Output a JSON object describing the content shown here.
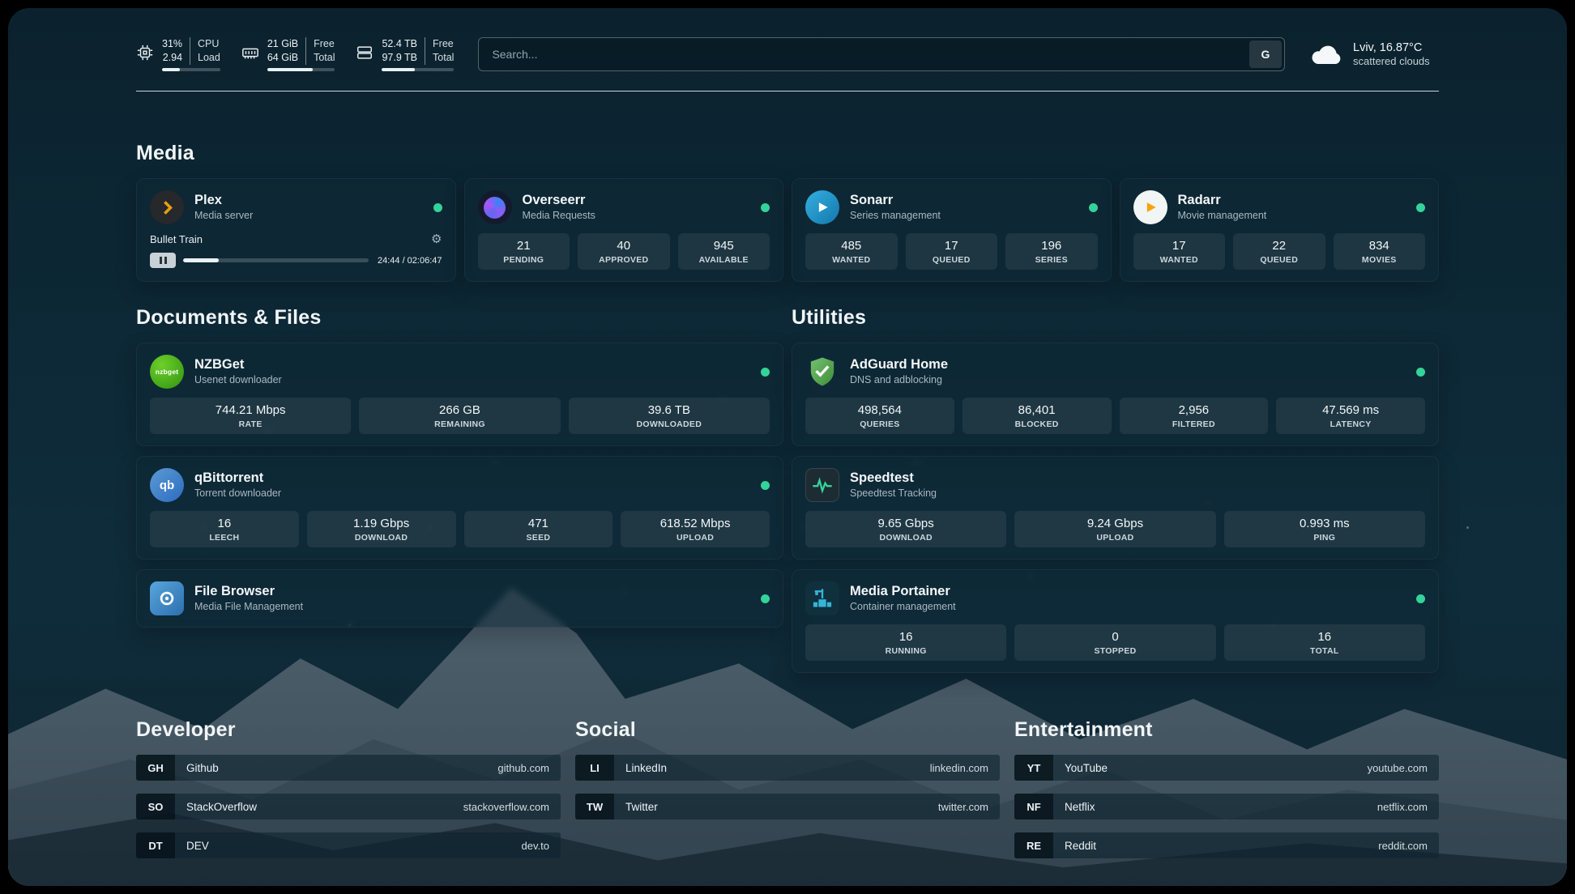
{
  "topbar": {
    "cpu": {
      "value1": "31%",
      "value2": "2.94",
      "label1": "CPU",
      "label2": "Load",
      "bar": 31
    },
    "memory": {
      "value1": "21 GiB",
      "value2": "64 GiB",
      "label1": "Free",
      "label2": "Total",
      "bar": 67
    },
    "disk": {
      "value1": "52.4 TB",
      "value2": "97.9 TB",
      "label1": "Free",
      "label2": "Total",
      "bar": 46
    },
    "search": {
      "placeholder": "Search...",
      "button_label": "G"
    },
    "weather": {
      "location": "Lviv, 16.87°C",
      "condition": "scattered clouds"
    }
  },
  "sections": {
    "media": "Media",
    "documents": "Documents & Files",
    "utilities": "Utilities",
    "developer": "Developer",
    "social": "Social",
    "entertainment": "Entertainment"
  },
  "icons": {
    "settings_gear": "⚙"
  },
  "colors": {
    "status_online": "#34d399",
    "accent_green": "#34d399"
  },
  "services": {
    "plex": {
      "name": "Plex",
      "subtitle": "Media server",
      "now_playing": "Bullet Train",
      "time": "24:44 / 02:06:47",
      "progress": 19
    },
    "overseerr": {
      "name": "Overseerr",
      "subtitle": "Media Requests",
      "stats": [
        {
          "value": "21",
          "label": "PENDING"
        },
        {
          "value": "40",
          "label": "APPROVED"
        },
        {
          "value": "945",
          "label": "AVAILABLE"
        }
      ]
    },
    "sonarr": {
      "name": "Sonarr",
      "subtitle": "Series management",
      "stats": [
        {
          "value": "485",
          "label": "WANTED"
        },
        {
          "value": "17",
          "label": "QUEUED"
        },
        {
          "value": "196",
          "label": "SERIES"
        }
      ]
    },
    "radarr": {
      "name": "Radarr",
      "subtitle": "Movie management",
      "stats": [
        {
          "value": "17",
          "label": "WANTED"
        },
        {
          "value": "22",
          "label": "QUEUED"
        },
        {
          "value": "834",
          "label": "MOVIES"
        }
      ]
    },
    "nzbget": {
      "name": "NZBGet",
      "subtitle": "Usenet downloader",
      "icon_text": "nzbget",
      "stats": [
        {
          "value": "744.21 Mbps",
          "label": "RATE"
        },
        {
          "value": "266 GB",
          "label": "REMAINING"
        },
        {
          "value": "39.6 TB",
          "label": "DOWNLOADED"
        }
      ]
    },
    "qbittorrent": {
      "name": "qBittorrent",
      "subtitle": "Torrent downloader",
      "icon_text": "qb",
      "stats": [
        {
          "value": "16",
          "label": "LEECH"
        },
        {
          "value": "1.19 Gbps",
          "label": "DOWNLOAD"
        },
        {
          "value": "471",
          "label": "SEED"
        },
        {
          "value": "618.52 Mbps",
          "label": "UPLOAD"
        }
      ]
    },
    "filebrowser": {
      "name": "File Browser",
      "subtitle": "Media File Management"
    },
    "adguard": {
      "name": "AdGuard Home",
      "subtitle": "DNS and adblocking",
      "stats": [
        {
          "value": "498,564",
          "label": "QUERIES"
        },
        {
          "value": "86,401",
          "label": "BLOCKED"
        },
        {
          "value": "2,956",
          "label": "FILTERED"
        },
        {
          "value": "47.569 ms",
          "label": "LATENCY"
        }
      ]
    },
    "speedtest": {
      "name": "Speedtest",
      "subtitle": "Speedtest Tracking",
      "stats": [
        {
          "value": "9.65 Gbps",
          "label": "DOWNLOAD"
        },
        {
          "value": "9.24 Gbps",
          "label": "UPLOAD"
        },
        {
          "value": "0.993 ms",
          "label": "PING"
        }
      ]
    },
    "portainer": {
      "name": "Media Portainer",
      "subtitle": "Container management",
      "stats": [
        {
          "value": "16",
          "label": "RUNNING"
        },
        {
          "value": "0",
          "label": "STOPPED"
        },
        {
          "value": "16",
          "label": "TOTAL"
        }
      ]
    }
  },
  "bookmarks": {
    "developer": [
      {
        "abbr": "GH",
        "name": "Github",
        "url": "github.com"
      },
      {
        "abbr": "SO",
        "name": "StackOverflow",
        "url": "stackoverflow.com"
      },
      {
        "abbr": "DT",
        "name": "DEV",
        "url": "dev.to"
      }
    ],
    "social": [
      {
        "abbr": "LI",
        "name": "LinkedIn",
        "url": "linkedin.com"
      },
      {
        "abbr": "TW",
        "name": "Twitter",
        "url": "twitter.com"
      }
    ],
    "entertainment": [
      {
        "abbr": "YT",
        "name": "YouTube",
        "url": "youtube.com"
      },
      {
        "abbr": "NF",
        "name": "Netflix",
        "url": "netflix.com"
      },
      {
        "abbr": "RE",
        "name": "Reddit",
        "url": "reddit.com"
      }
    ]
  }
}
